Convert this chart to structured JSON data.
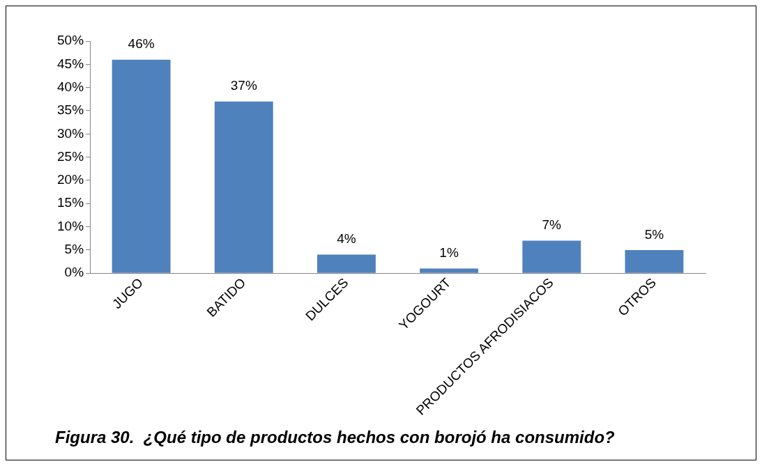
{
  "chart_data": {
    "type": "bar",
    "title": "Figura 30.  ¿Qué tipo de productos hechos con borojó ha consumido?",
    "categories": [
      "JUGO",
      "BATIDO",
      "DULCES",
      "YOGOURT",
      "PRODUCTOS AFRODISIACOS",
      "OTROS"
    ],
    "values": [
      46,
      37,
      4,
      1,
      7,
      5
    ],
    "value_labels": [
      "46%",
      "37%",
      "4%",
      "1%",
      "7%",
      "5%"
    ],
    "color": "#4f81bd",
    "ylim": [
      0,
      50
    ],
    "yticks": [
      {
        "value": 0,
        "label": "0%"
      },
      {
        "value": 5,
        "label": "5%"
      },
      {
        "value": 10,
        "label": "10%"
      },
      {
        "value": 15,
        "label": "15%"
      },
      {
        "value": 20,
        "label": "20%"
      },
      {
        "value": 25,
        "label": "25%"
      },
      {
        "value": 30,
        "label": "30%"
      },
      {
        "value": 35,
        "label": "35%"
      },
      {
        "value": 40,
        "label": "40%"
      },
      {
        "value": 45,
        "label": "45%"
      },
      {
        "value": 50,
        "label": "50%"
      }
    ],
    "grid": false,
    "legend": false
  }
}
